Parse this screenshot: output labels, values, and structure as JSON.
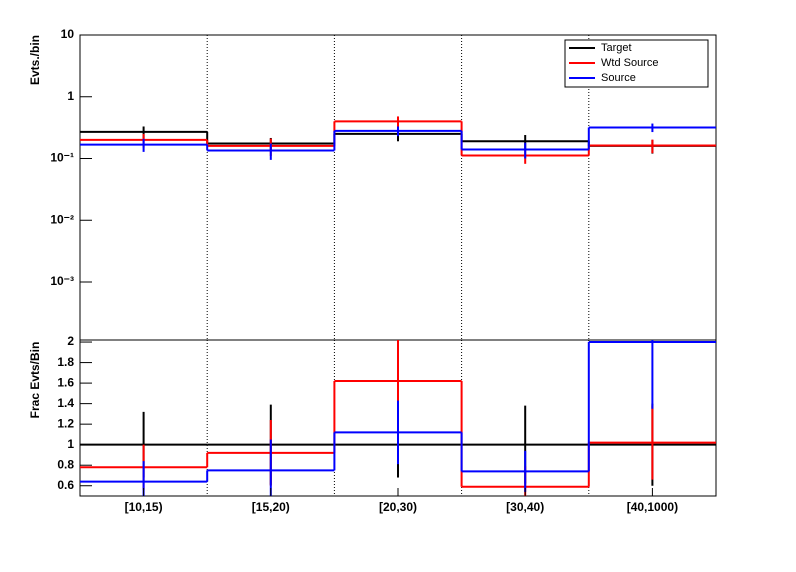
{
  "chart_data": [
    {
      "type": "step",
      "ylabel": "Evts./bin",
      "log_y": true,
      "ylim": [
        0.000115,
        10
      ],
      "yticks": [
        {
          "value": 10,
          "label": "10"
        },
        {
          "value": 1,
          "label": "1"
        },
        {
          "value": 0.1,
          "label": "10⁻¹"
        },
        {
          "value": 0.01,
          "label": "10⁻²"
        },
        {
          "value": 0.001,
          "label": "10⁻³"
        }
      ],
      "legend": "top-right",
      "series": [
        {
          "name": "Target",
          "color": "#000000",
          "values": [
            0.27,
            0.175,
            0.25,
            0.19,
            0.16
          ],
          "errors": [
            0.06,
            0.04,
            0.06,
            0.05,
            0.04
          ]
        },
        {
          "name": "Wtd Source",
          "color": "#ff0000",
          "values": [
            0.2,
            0.16,
            0.4,
            0.112,
            0.162
          ],
          "errors": [
            0.05,
            0.05,
            0.08,
            0.03,
            0.04
          ]
        },
        {
          "name": "Source",
          "color": "#0000ff",
          "values": [
            0.168,
            0.135,
            0.28,
            0.14,
            0.318
          ],
          "errors": [
            0.04,
            0.04,
            0.05,
            0.04,
            0.05
          ]
        }
      ]
    },
    {
      "type": "step",
      "ylabel": "Frac Evts/Bin",
      "categories": [
        "[10,15)",
        "[15,20)",
        "[20,30)",
        "[30,40)",
        "[40,1000)"
      ],
      "ylim": [
        0.5,
        2.02
      ],
      "yticks": [
        0.6,
        0.8,
        1,
        1.2,
        1.4,
        1.6,
        1.8,
        2
      ],
      "series": [
        {
          "color": "#000000",
          "values": [
            1,
            1,
            1,
            1,
            1
          ],
          "errors": [
            0.32,
            0.39,
            0.32,
            0.38,
            0.4
          ]
        },
        {
          "color": "#ff0000",
          "values": [
            0.78,
            0.92,
            1.62,
            0.59,
            1.02
          ],
          "errors": [
            0.22,
            0.32,
            0.4,
            0.2,
            0.36
          ]
        },
        {
          "color": "#0000ff",
          "values": [
            0.64,
            0.75,
            1.12,
            0.74,
            2.0
          ],
          "errors": [
            0.2,
            0.3,
            0.31,
            0.2,
            0.65
          ]
        }
      ]
    }
  ]
}
